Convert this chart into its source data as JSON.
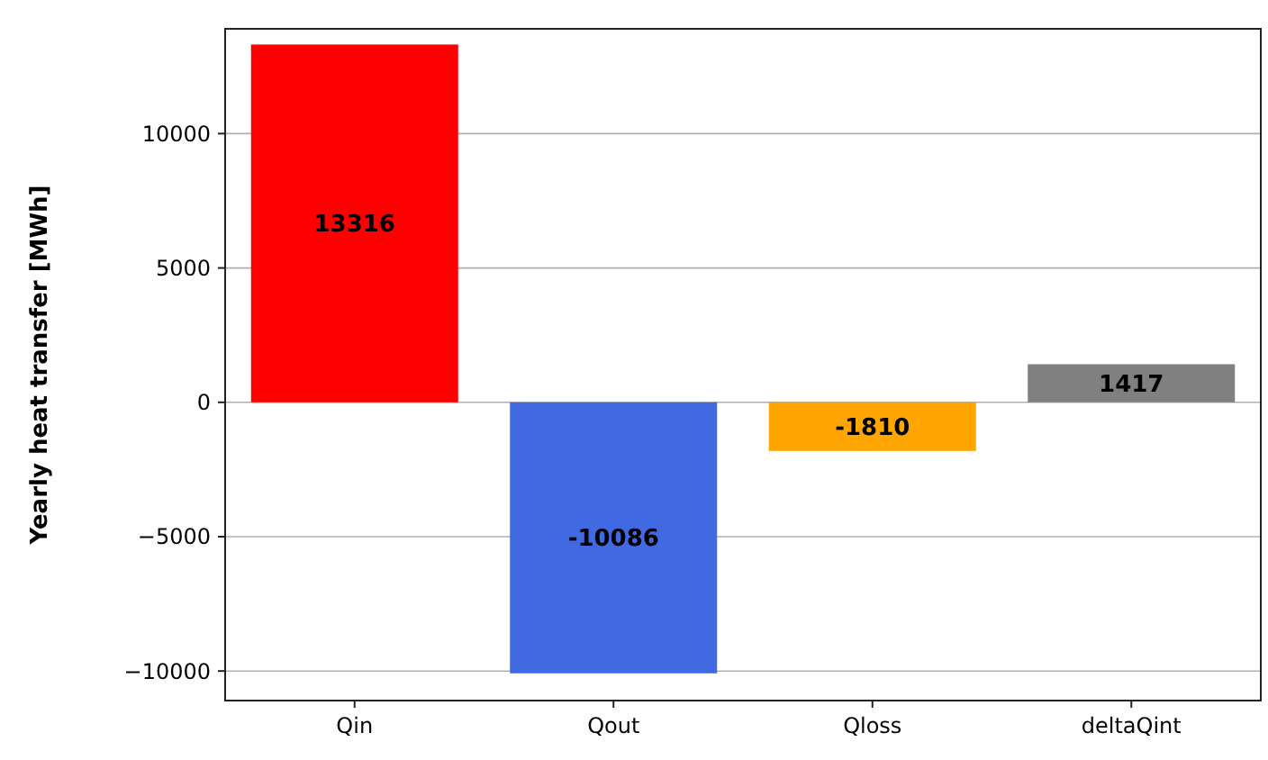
{
  "chart_data": {
    "type": "bar",
    "ylabel": "Yearly heat transfer [MWh]",
    "categories": [
      "Qin",
      "Qout",
      "Qloss",
      "deltaQint"
    ],
    "values": [
      13316,
      -10086,
      -1810,
      1417
    ],
    "colors": [
      "#ff0000",
      "#4169e1",
      "#ffa500",
      "#808080"
    ],
    "ylim": [
      -11100,
      13900
    ],
    "yticks": [
      -10000,
      -5000,
      0,
      5000,
      10000
    ],
    "grid": "y",
    "data_labels": true
  }
}
